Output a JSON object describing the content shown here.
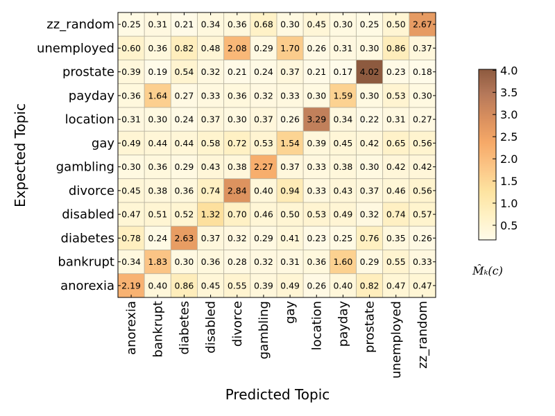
{
  "chart_data": {
    "type": "heatmap",
    "title": "",
    "xlabel": "Predicted Topic",
    "ylabel": "Expected Topic",
    "x_categories": [
      "anorexia",
      "bankrupt",
      "diabetes",
      "disabled",
      "divorce",
      "gambling",
      "gay",
      "location",
      "payday",
      "prostate",
      "unemployed",
      "zz_random"
    ],
    "y_categories": [
      "zz_random",
      "unemployed",
      "prostate",
      "payday",
      "location",
      "gay",
      "gambling",
      "divorce",
      "disabled",
      "diabetes",
      "bankrupt",
      "anorexia"
    ],
    "values": [
      [
        "0.25",
        "0.31",
        "0.21",
        "0.34",
        "0.36",
        "0.68",
        "0.30",
        "0.45",
        "0.30",
        "0.25",
        "0.50",
        "2.67"
      ],
      [
        "0.60",
        "0.36",
        "0.82",
        "0.48",
        "2.08",
        "0.29",
        "1.70",
        "0.26",
        "0.31",
        "0.30",
        "0.86",
        "0.37"
      ],
      [
        "0.39",
        "0.19",
        "0.54",
        "0.32",
        "0.21",
        "0.24",
        "0.37",
        "0.21",
        "0.17",
        "4.02",
        "0.23",
        "0.18"
      ],
      [
        "0.36",
        "1.64",
        "0.27",
        "0.33",
        "0.36",
        "0.32",
        "0.33",
        "0.30",
        "1.59",
        "0.30",
        "0.53",
        "0.30"
      ],
      [
        "0.31",
        "0.30",
        "0.24",
        "0.37",
        "0.30",
        "0.37",
        "0.26",
        "3.29",
        "0.34",
        "0.22",
        "0.31",
        "0.27"
      ],
      [
        "0.49",
        "0.44",
        "0.44",
        "0.58",
        "0.72",
        "0.53",
        "1.54",
        "0.39",
        "0.45",
        "0.42",
        "0.65",
        "0.56"
      ],
      [
        "0.30",
        "0.36",
        "0.29",
        "0.43",
        "0.38",
        "2.27",
        "0.37",
        "0.33",
        "0.38",
        "0.30",
        "0.42",
        "0.42"
      ],
      [
        "0.45",
        "0.38",
        "0.36",
        "0.74",
        "2.84",
        "0.40",
        "0.94",
        "0.33",
        "0.43",
        "0.37",
        "0.46",
        "0.56"
      ],
      [
        "0.47",
        "0.51",
        "0.52",
        "1.32",
        "0.70",
        "0.46",
        "0.50",
        "0.53",
        "0.49",
        "0.32",
        "0.74",
        "0.57"
      ],
      [
        "0.78",
        "0.24",
        "2.63",
        "0.37",
        "0.32",
        "0.29",
        "0.41",
        "0.23",
        "0.25",
        "0.76",
        "0.35",
        "0.26"
      ],
      [
        "0.34",
        "1.83",
        "0.30",
        "0.36",
        "0.28",
        "0.32",
        "0.31",
        "0.36",
        "1.60",
        "0.29",
        "0.55",
        "0.33"
      ],
      [
        "2.19",
        "0.40",
        "0.86",
        "0.45",
        "0.55",
        "0.39",
        "0.49",
        "0.26",
        "0.40",
        "0.82",
        "0.47",
        "0.47"
      ]
    ],
    "colorbar": {
      "min": 0.17,
      "max": 4.02,
      "ticks": [
        "0.5",
        "1.0",
        "1.5",
        "2.0",
        "2.5",
        "3.0",
        "3.5",
        "4.0"
      ],
      "label": "M̂ₖ(c)",
      "colormap": [
        "#fffbea",
        "#fff1c4",
        "#fde3a0",
        "#fbc586",
        "#f6a968",
        "#d98f5e",
        "#b5785a",
        "#8d5a3f"
      ]
    },
    "grid": true,
    "legend": "colorbar-right"
  }
}
